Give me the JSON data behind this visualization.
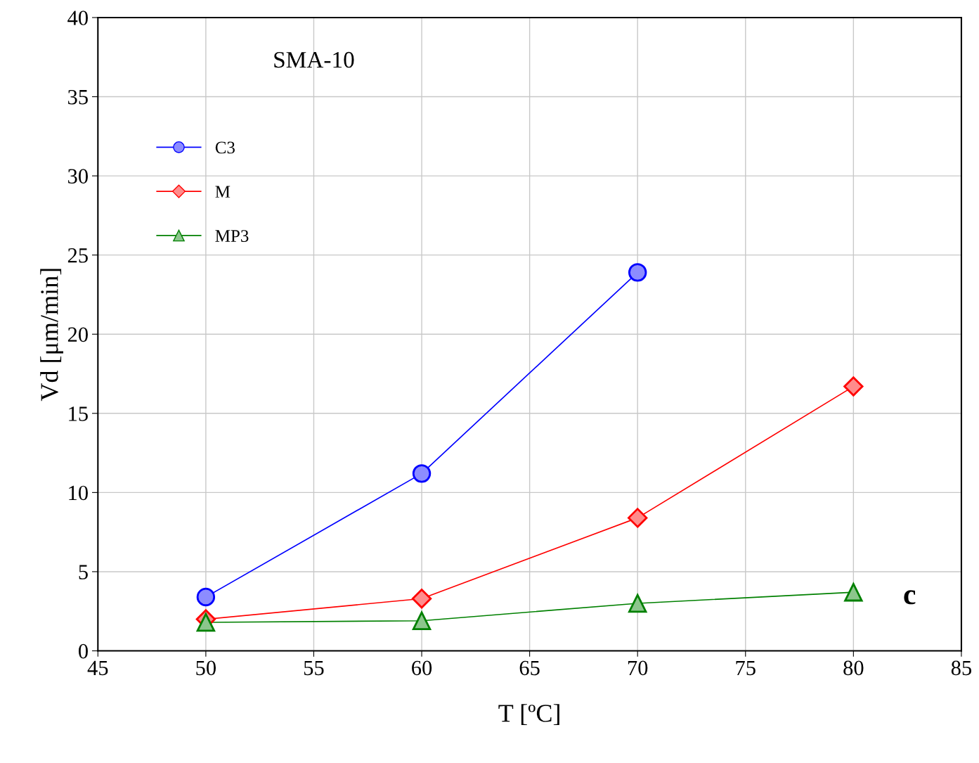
{
  "chart_data": {
    "type": "line",
    "xlabel": "T [ºC]",
    "ylabel": "Vd [μm/min]",
    "xlim": [
      45,
      85
    ],
    "xticks": [
      45,
      50,
      55,
      60,
      65,
      70,
      75,
      80,
      85
    ],
    "ylim": [
      0,
      40
    ],
    "yticks": [
      0,
      5,
      10,
      15,
      20,
      25,
      30,
      35,
      40
    ],
    "grid": true,
    "legend": "top left",
    "series": [
      {
        "name": "C3",
        "color": "#0000ff",
        "marker": "circle",
        "x": [
          50,
          60,
          70
        ],
        "values": [
          3.4,
          11.2,
          23.9
        ]
      },
      {
        "name": "M",
        "color": "#ff0000",
        "marker": "diamond",
        "x": [
          50,
          60,
          70,
          80
        ],
        "values": [
          2.0,
          3.3,
          8.4,
          16.7
        ]
      },
      {
        "name": "MP3",
        "color": "#008000",
        "marker": "triangle",
        "x": [
          50,
          60,
          70,
          80
        ],
        "values": [
          1.8,
          1.9,
          3.0,
          3.7
        ]
      }
    ],
    "annotations": [
      "SMA-10",
      "c"
    ]
  }
}
